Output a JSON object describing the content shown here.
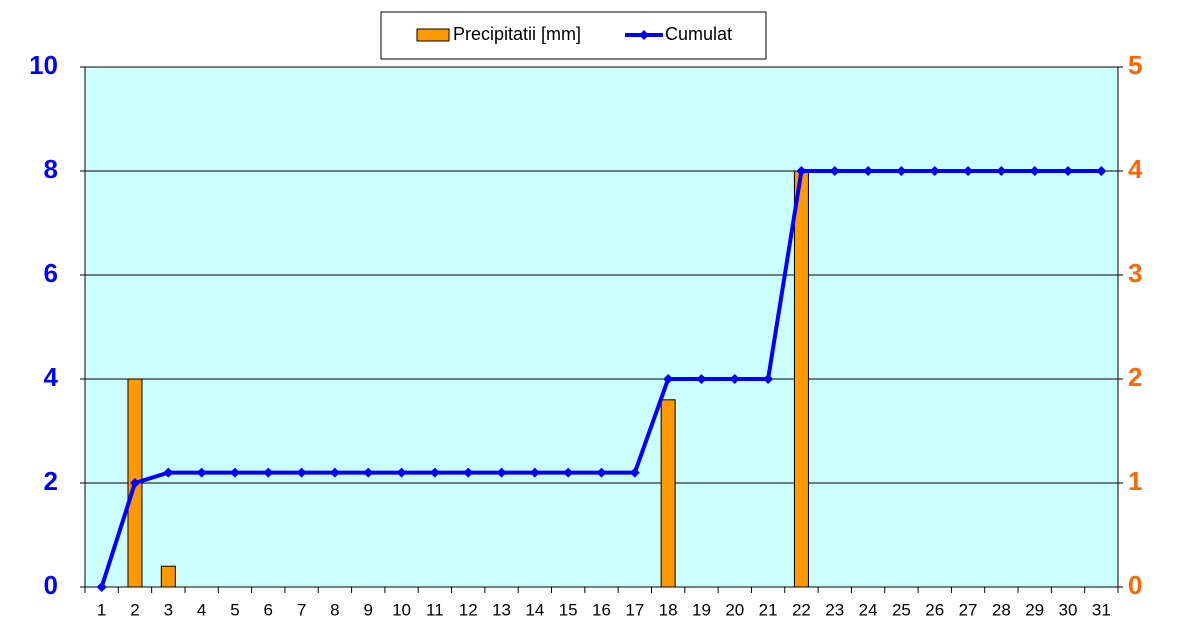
{
  "chart_data": {
    "type": "bar_line",
    "categories": [
      1,
      2,
      3,
      4,
      5,
      6,
      7,
      8,
      9,
      10,
      11,
      12,
      13,
      14,
      15,
      16,
      17,
      18,
      19,
      20,
      21,
      22,
      23,
      24,
      25,
      26,
      27,
      28,
      29,
      30,
      31
    ],
    "series": [
      {
        "name": "Precipitatii [mm]",
        "color": "#ff9900",
        "type": "bar",
        "axis": "y2",
        "values": [
          0,
          2,
          0.2,
          0,
          0,
          0,
          0,
          0,
          0,
          0,
          0,
          0,
          0,
          0,
          0,
          0,
          0,
          1.8,
          0,
          0,
          0,
          4,
          0,
          0,
          0,
          0,
          0,
          0,
          0,
          0,
          0
        ]
      },
      {
        "name": "Cumulat",
        "color": "#0000ff",
        "type": "line",
        "axis": "y",
        "values": [
          0,
          2,
          2.2,
          2.2,
          2.2,
          2.2,
          2.2,
          2.2,
          2.2,
          2.2,
          2.2,
          2.2,
          2.2,
          2.2,
          2.2,
          2.2,
          2.2,
          4,
          4,
          4,
          4,
          8,
          8,
          8,
          8,
          8,
          8,
          8,
          8,
          8,
          8
        ]
      }
    ],
    "ylim": [
      0,
      10
    ],
    "yticks": [
      0,
      2,
      4,
      6,
      8,
      10
    ],
    "y2lim": [
      0,
      5
    ],
    "y2ticks": [
      0,
      1,
      2,
      3,
      4,
      5
    ],
    "grid": true,
    "legend": "top"
  }
}
